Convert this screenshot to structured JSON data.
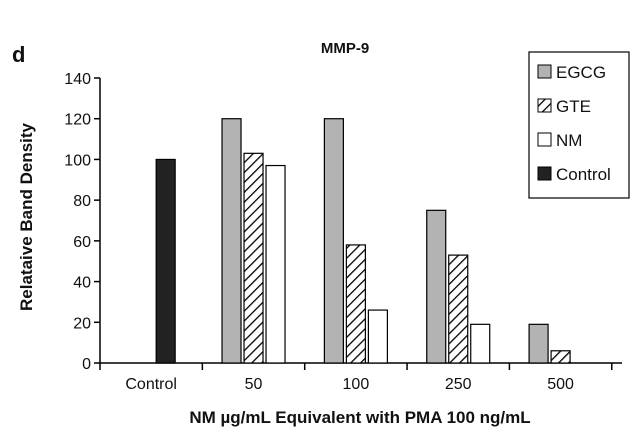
{
  "panel_label": "d",
  "chart_data": {
    "type": "bar",
    "title": "MMP-9",
    "xlabel": "NM µg/mL Equivalent with PMA 100 ng/mL",
    "ylabel": "Relataive Band Density",
    "ylim": [
      0,
      140
    ],
    "yticks": [
      "0",
      "20",
      "40",
      "60",
      "80",
      "100",
      "120",
      "140"
    ],
    "categories": [
      "Control",
      "50",
      "100",
      "250",
      "500"
    ],
    "grid": false,
    "legend_position": "top-right",
    "series": [
      {
        "name": "EGCG",
        "pattern": "gray",
        "values": [
          null,
          120,
          120,
          75,
          19
        ]
      },
      {
        "name": "GTE",
        "pattern": "hatch",
        "values": [
          null,
          103,
          58,
          53,
          6
        ]
      },
      {
        "name": "NM",
        "pattern": "white",
        "values": [
          null,
          97,
          26,
          19,
          0
        ]
      },
      {
        "name": "Control",
        "pattern": "black",
        "values": [
          100,
          null,
          null,
          null,
          null
        ]
      }
    ],
    "colors": {
      "gray": "#b3b3b3",
      "black": "#222222",
      "white": "#ffffff",
      "stroke": "#000000"
    }
  }
}
